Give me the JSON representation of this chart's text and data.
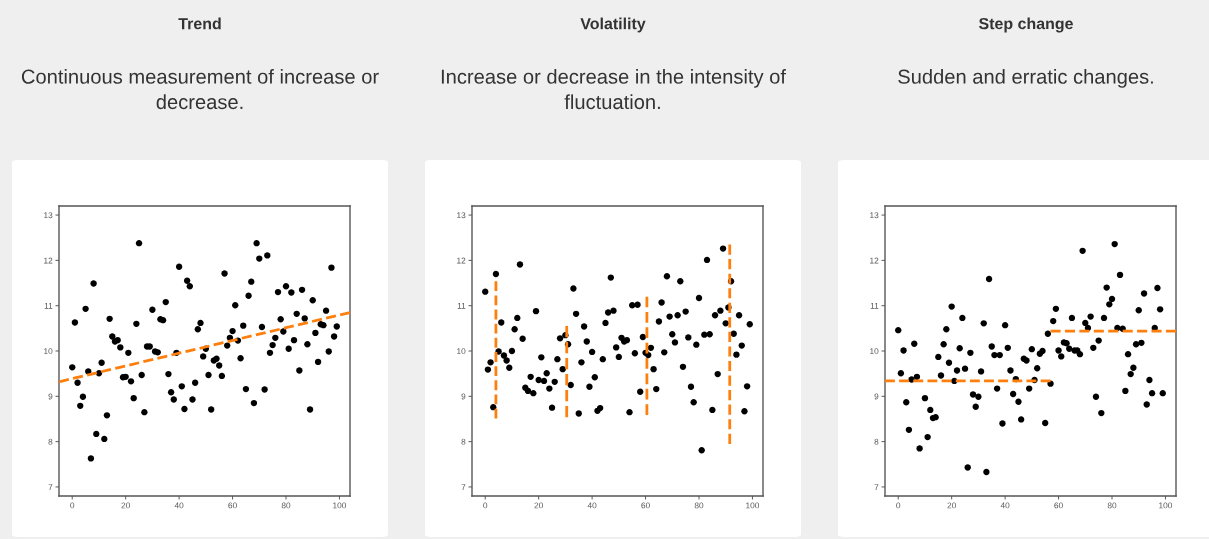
{
  "chart_data": [
    {
      "type": "scatter",
      "title": "Trend",
      "subtitle": "Continuous measurement of increase or decrease.",
      "x": [
        0,
        1,
        2,
        3,
        4,
        5,
        6,
        7,
        8,
        9,
        10,
        11,
        12,
        13,
        14,
        15,
        16,
        17,
        18,
        19,
        20,
        21,
        22,
        23,
        24,
        25,
        26,
        27,
        28,
        29,
        30,
        31,
        32,
        33,
        34,
        35,
        36,
        37,
        38,
        39,
        40,
        41,
        42,
        43,
        44,
        45,
        46,
        47,
        48,
        49,
        50,
        51,
        52,
        53,
        54,
        55,
        56,
        57,
        58,
        59,
        60,
        61,
        62,
        63,
        64,
        65,
        66,
        67,
        68,
        69,
        70,
        71,
        72,
        73,
        74,
        75,
        76,
        77,
        78,
        79,
        80,
        81,
        82,
        83,
        84,
        85,
        86,
        87,
        88,
        89,
        90,
        91,
        92,
        93,
        94,
        95,
        96,
        97,
        98,
        99
      ],
      "series": [
        {
          "color": "#000000",
          "marker": "circle",
          "values": [
            9.64,
            10.63,
            9.3,
            8.79,
            8.99,
            10.93,
            9.55,
            7.63,
            11.49,
            8.17,
            9.51,
            9.74,
            8.06,
            8.58,
            10.71,
            10.32,
            10.21,
            10.24,
            10.08,
            9.42,
            9.43,
            9.96,
            9.33,
            8.96,
            10.6,
            12.38,
            9.47,
            8.65,
            10.1,
            10.1,
            10.91,
            9.99,
            9.97,
            10.7,
            10.68,
            11.08,
            9.49,
            9.09,
            8.93,
            9.96,
            11.86,
            9.22,
            8.72,
            11.55,
            11.43,
            8.93,
            9.3,
            10.48,
            10.62,
            9.88,
            10.05,
            9.47,
            8.71,
            9.79,
            9.83,
            9.68,
            9.45,
            11.71,
            10.12,
            10.29,
            10.44,
            11.01,
            10.23,
            9.84,
            10.56,
            9.16,
            11.22,
            11.53,
            8.85,
            12.38,
            12.04,
            10.53,
            9.15,
            12.11,
            9.96,
            10.13,
            10.29,
            11.3,
            10.7,
            10.43,
            11.43,
            10.05,
            11.29,
            10.24,
            10.82,
            9.57,
            11.35,
            10.72,
            10.15,
            8.71,
            11.12,
            10.4,
            9.76,
            10.59,
            10.57,
            10.89,
            9.99,
            11.84,
            10.32,
            10.54
          ]
        },
        {
          "type": "line",
          "color": "#ff7f0e",
          "line_style": "dashed",
          "x": [
            -4.95,
            103.95
          ],
          "values": [
            9.32,
            10.85
          ]
        }
      ],
      "xlim": [
        -4.95,
        103.95
      ],
      "ylim": [
        6.8,
        13.2
      ],
      "xticks": [
        0,
        20,
        40,
        60,
        80,
        100
      ],
      "yticks": [
        7,
        8,
        9,
        10,
        11,
        12,
        13
      ]
    },
    {
      "type": "scatter",
      "title": "Volatility",
      "subtitle": "Increase or decrease in the intensity of fluctuation.",
      "x": [
        0,
        1,
        2,
        3,
        4,
        5,
        6,
        7,
        8,
        9,
        10,
        11,
        12,
        13,
        14,
        15,
        16,
        17,
        18,
        19,
        20,
        21,
        22,
        23,
        24,
        25,
        26,
        27,
        28,
        29,
        30,
        31,
        32,
        33,
        34,
        35,
        36,
        37,
        38,
        39,
        40,
        41,
        42,
        43,
        44,
        45,
        46,
        47,
        48,
        49,
        50,
        51,
        52,
        53,
        54,
        55,
        56,
        57,
        58,
        59,
        60,
        61,
        62,
        63,
        64,
        65,
        66,
        67,
        68,
        69,
        70,
        71,
        72,
        73,
        74,
        75,
        76,
        77,
        78,
        79,
        80,
        81,
        82,
        83,
        84,
        85,
        86,
        87,
        88,
        89,
        90,
        91,
        92,
        93,
        94,
        95,
        96,
        97,
        98,
        99
      ],
      "series": [
        {
          "color": "#000000",
          "marker": "circle",
          "values": [
            11.31,
            9.59,
            9.75,
            8.76,
            11.7,
            9.99,
            10.63,
            9.9,
            9.79,
            9.63,
            10.0,
            10.48,
            10.73,
            11.91,
            10.27,
            9.19,
            9.12,
            9.43,
            9.07,
            10.88,
            9.36,
            9.86,
            9.34,
            9.51,
            9.17,
            8.75,
            9.32,
            9.82,
            10.28,
            9.6,
            10.35,
            10.15,
            9.25,
            11.38,
            10.82,
            8.62,
            9.75,
            10.54,
            10.21,
            9.21,
            9.98,
            9.42,
            8.68,
            8.74,
            9.82,
            10.62,
            10.85,
            11.62,
            10.89,
            10.08,
            9.87,
            10.29,
            10.21,
            10.24,
            8.65,
            11.01,
            9.95,
            11.02,
            9.1,
            10.31,
            9.96,
            9.91,
            10.07,
            9.6,
            9.16,
            10.65,
            11.07,
            9.97,
            11.65,
            10.76,
            10.37,
            10.19,
            10.79,
            11.54,
            9.65,
            10.87,
            10.3,
            9.21,
            8.87,
            10.14,
            11.17,
            7.81,
            10.36,
            12.01,
            10.37,
            8.7,
            10.79,
            9.49,
            10.89,
            12.26,
            10.61,
            10.96,
            11.54,
            10.38,
            9.92,
            10.79,
            10.12,
            8.67,
            9.22,
            10.59
          ]
        },
        {
          "type": "line",
          "color": "#ff7f0e",
          "line_style": "dashed",
          "x": [
            4,
            4
          ],
          "values": [
            8.51,
            11.54
          ]
        },
        {
          "type": "line",
          "color": "#ff7f0e",
          "line_style": "dashed",
          "x": [
            30.5,
            30.5
          ],
          "values": [
            8.54,
            10.55
          ]
        },
        {
          "type": "line",
          "color": "#ff7f0e",
          "line_style": "dashed",
          "x": [
            60.5,
            60.5
          ],
          "values": [
            8.59,
            11.2
          ]
        },
        {
          "type": "line",
          "color": "#ff7f0e",
          "line_style": "dashed",
          "x": [
            91.5,
            91.5
          ],
          "values": [
            7.95,
            12.35
          ]
        }
      ],
      "xlim": [
        -4.95,
        103.95
      ],
      "ylim": [
        6.8,
        13.2
      ],
      "xticks": [
        0,
        20,
        40,
        60,
        80,
        100
      ],
      "yticks": [
        7,
        8,
        9,
        10,
        11,
        12,
        13
      ]
    },
    {
      "type": "scatter",
      "title": "Step change",
      "subtitle": "Sudden and erratic changes.",
      "x": [
        0,
        1,
        2,
        3,
        4,
        5,
        6,
        7,
        8,
        9,
        10,
        11,
        12,
        13,
        14,
        15,
        16,
        17,
        18,
        19,
        20,
        21,
        22,
        23,
        24,
        25,
        26,
        27,
        28,
        29,
        30,
        31,
        32,
        33,
        34,
        35,
        36,
        37,
        38,
        39,
        40,
        41,
        42,
        43,
        44,
        45,
        46,
        47,
        48,
        49,
        50,
        51,
        52,
        53,
        54,
        55,
        56,
        57,
        58,
        59,
        60,
        61,
        62,
        63,
        64,
        65,
        66,
        67,
        68,
        69,
        70,
        71,
        72,
        73,
        74,
        75,
        76,
        77,
        78,
        79,
        80,
        81,
        82,
        83,
        84,
        85,
        86,
        87,
        88,
        89,
        90,
        91,
        92,
        93,
        94,
        95,
        96,
        97,
        98,
        99
      ],
      "series": [
        {
          "color": "#000000",
          "marker": "circle",
          "values": [
            10.46,
            9.51,
            10.01,
            8.87,
            8.26,
            9.37,
            10.16,
            9.43,
            7.85,
            null,
            8.96,
            8.1,
            8.7,
            8.52,
            8.54,
            9.87,
            9.46,
            10.15,
            10.48,
            9.74,
            10.98,
            9.34,
            9.57,
            10.06,
            10.73,
            9.61,
            7.43,
            9.96,
            9.04,
            8.77,
            8.99,
            9.55,
            10.61,
            7.33,
            11.59,
            10.1,
            9.91,
            9.17,
            9.91,
            8.4,
            10.57,
            10.07,
            9.57,
            9.05,
            9.38,
            8.88,
            8.49,
            9.83,
            9.79,
            9.17,
            10.04,
            9.36,
            9.62,
            9.94,
            10.0,
            8.41,
            10.38,
            9.28,
            10.66,
            10.93,
            10.01,
            9.88,
            10.19,
            10.17,
            10.05,
            10.73,
            10.01,
            10.01,
            9.93,
            12.21,
            10.62,
            10.51,
            10.76,
            10.07,
            8.99,
            10.23,
            8.63,
            10.73,
            11.4,
            11.03,
            11.15,
            12.36,
            10.51,
            11.68,
            10.49,
            9.12,
            9.93,
            9.49,
            9.63,
            10.15,
            10.9,
            10.18,
            11.27,
            8.82,
            9.36,
            9.07,
            10.51,
            11.39,
            10.92,
            9.07
          ]
        },
        {
          "type": "line",
          "color": "#ff7f0e",
          "line_style": "dashed",
          "x": [
            -4.95,
            57
          ],
          "values": [
            9.34,
            9.34
          ]
        },
        {
          "type": "line",
          "color": "#ff7f0e",
          "line_style": "dashed",
          "x": [
            57,
            103.95
          ],
          "values": [
            10.44,
            10.44
          ]
        }
      ],
      "xlim": [
        -4.95,
        103.95
      ],
      "ylim": [
        6.8,
        13.2
      ],
      "xticks": [
        0,
        20,
        40,
        60,
        80,
        100
      ],
      "yticks": [
        7,
        8,
        9,
        10,
        11,
        12,
        13
      ]
    }
  ]
}
